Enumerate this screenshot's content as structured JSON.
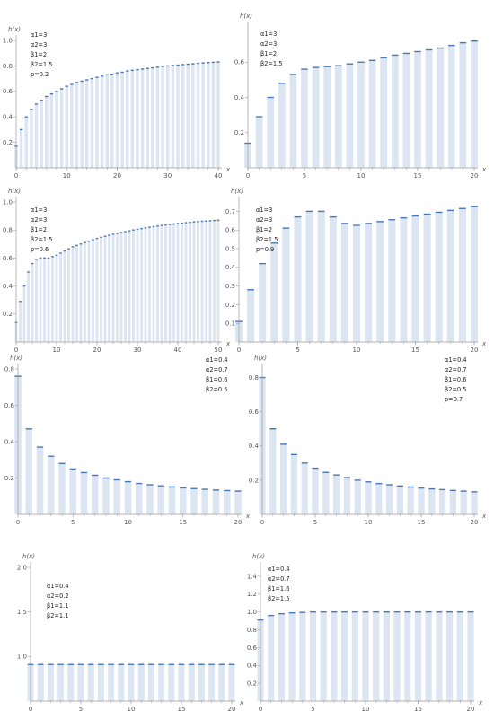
{
  "colors": {
    "bar": "#dce6f2",
    "cap": "#4a78b4",
    "axis": "#9a9a9a",
    "text": "#555555"
  },
  "chart_data": [
    {
      "type": "bar",
      "ylabel": "h(x)",
      "xlabel": "x",
      "xlim": [
        0,
        40
      ],
      "ylim": [
        0,
        1.0
      ],
      "xticks": [
        0,
        10,
        20,
        30,
        40
      ],
      "yticks": [
        0.2,
        0.4,
        0.6,
        0.8,
        1.0
      ],
      "ytick_labels": [
        "0.2",
        "0.4",
        "0.6",
        "0.8",
        "1.0"
      ],
      "params": [
        "α1=3",
        "α2=3",
        "β1=2",
        "β2=1.5",
        "p=0.2"
      ],
      "x_start": 0,
      "values": [
        0.17,
        0.3,
        0.4,
        0.46,
        0.5,
        0.53,
        0.56,
        0.58,
        0.6,
        0.62,
        0.64,
        0.655,
        0.67,
        0.68,
        0.69,
        0.7,
        0.71,
        0.72,
        0.73,
        0.735,
        0.745,
        0.75,
        0.76,
        0.765,
        0.77,
        0.775,
        0.78,
        0.785,
        0.79,
        0.795,
        0.8,
        0.803,
        0.806,
        0.81,
        0.813,
        0.816,
        0.82,
        0.823,
        0.826,
        0.828,
        0.83
      ]
    },
    {
      "type": "bar",
      "ylabel": "h(x)",
      "xlabel": "x",
      "xlim": [
        0,
        20
      ],
      "ylim": [
        0,
        0.8
      ],
      "xticks": [
        0,
        5,
        10,
        15,
        20
      ],
      "yticks": [
        0.2,
        0.4,
        0.6
      ],
      "ytick_labels": [
        "0.2",
        "0.4",
        "0.6"
      ],
      "params": [
        "α1=3",
        "α2=3",
        "β1=2",
        "β2=1.5"
      ],
      "x_start": 0,
      "values": [
        0.14,
        0.29,
        0.4,
        0.48,
        0.53,
        0.56,
        0.57,
        0.575,
        0.58,
        0.59,
        0.6,
        0.61,
        0.625,
        0.64,
        0.65,
        0.66,
        0.67,
        0.68,
        0.695,
        0.71,
        0.72
      ]
    },
    {
      "type": "bar",
      "ylabel": "h(x)",
      "xlabel": "x",
      "xlim": [
        0,
        50
      ],
      "ylim": [
        0,
        1.0
      ],
      "xticks": [
        0,
        10,
        20,
        30,
        40,
        50
      ],
      "yticks": [
        0.2,
        0.4,
        0.6,
        0.8,
        1.0
      ],
      "ytick_labels": [
        "0.2",
        "0.4",
        "0.6",
        "0.8",
        "1.0"
      ],
      "params": [
        "α1=3",
        "α2=3",
        "β1=2",
        "β2=1.5",
        "p=0.6"
      ],
      "x_start": 0,
      "values": [
        0.14,
        0.29,
        0.4,
        0.5,
        0.56,
        0.59,
        0.6,
        0.6,
        0.6,
        0.61,
        0.62,
        0.635,
        0.65,
        0.665,
        0.68,
        0.69,
        0.7,
        0.71,
        0.72,
        0.73,
        0.74,
        0.748,
        0.755,
        0.762,
        0.77,
        0.776,
        0.782,
        0.788,
        0.794,
        0.8,
        0.805,
        0.81,
        0.815,
        0.82,
        0.824,
        0.828,
        0.832,
        0.836,
        0.84,
        0.843,
        0.846,
        0.849,
        0.852,
        0.855,
        0.858,
        0.86,
        0.862,
        0.864,
        0.866,
        0.868,
        0.87
      ]
    },
    {
      "type": "bar",
      "ylabel": "h(x)",
      "xlabel": "x",
      "xlim": [
        0,
        20
      ],
      "ylim": [
        0,
        0.75
      ],
      "xticks": [
        0,
        5,
        10,
        15,
        20
      ],
      "yticks": [
        0.1,
        0.2,
        0.3,
        0.4,
        0.5,
        0.6,
        0.7
      ],
      "ytick_labels": [
        "0.1",
        "0.2",
        "0.3",
        "0.4",
        "0.5",
        "0.6",
        "0.7"
      ],
      "params": [
        "α1=3",
        "α2=3",
        "β1=2",
        "β2=1.5",
        "p=0.9"
      ],
      "x_start": 0,
      "values": [
        0.11,
        0.28,
        0.42,
        0.53,
        0.61,
        0.67,
        0.7,
        0.7,
        0.67,
        0.635,
        0.625,
        0.635,
        0.645,
        0.655,
        0.665,
        0.675,
        0.685,
        0.695,
        0.705,
        0.715,
        0.725
      ]
    },
    {
      "type": "bar",
      "ylabel": "h(x)",
      "xlabel": "x",
      "xlim": [
        0,
        20
      ],
      "ylim": [
        0,
        0.8
      ],
      "xticks": [
        0,
        5,
        10,
        15,
        20
      ],
      "yticks": [
        0.2,
        0.4,
        0.6,
        0.8
      ],
      "ytick_labels": [
        "0.2",
        "0.4",
        "0.6",
        "0.8"
      ],
      "params": [
        "α1=0.4",
        "α2=0.7",
        "β1=0.6",
        "β2=0.5"
      ],
      "x_start": 0,
      "values": [
        0.76,
        0.47,
        0.37,
        0.32,
        0.28,
        0.25,
        0.23,
        0.215,
        0.2,
        0.19,
        0.18,
        0.17,
        0.163,
        0.157,
        0.151,
        0.146,
        0.142,
        0.138,
        0.134,
        0.131,
        0.128
      ]
    },
    {
      "type": "bar",
      "ylabel": "h(x)",
      "xlabel": "x",
      "xlim": [
        0,
        20
      ],
      "ylim": [
        0,
        0.85
      ],
      "xticks": [
        0,
        5,
        10,
        15,
        20
      ],
      "yticks": [
        0.2,
        0.4,
        0.6,
        0.8
      ],
      "ytick_labels": [
        "0.2",
        "0.4",
        "0.6",
        "0.8"
      ],
      "params": [
        "α1=0.4",
        "α2=0.7",
        "β1=0.6",
        "β2=0.5",
        "p=0.7"
      ],
      "x_start": 0,
      "values": [
        0.8,
        0.5,
        0.41,
        0.35,
        0.3,
        0.27,
        0.245,
        0.23,
        0.215,
        0.2,
        0.19,
        0.18,
        0.173,
        0.166,
        0.16,
        0.154,
        0.149,
        0.145,
        0.14,
        0.136,
        0.132
      ]
    },
    {
      "type": "bar",
      "ylabel": "h(x)",
      "xlabel": "x",
      "xlim": [
        0,
        20
      ],
      "ylim": [
        0.5,
        2.0
      ],
      "xticks": [
        0,
        5,
        10,
        15,
        20
      ],
      "yticks": [
        1.0,
        1.5,
        2.0
      ],
      "ytick_labels": [
        "1.0",
        "1.5",
        "2.0"
      ],
      "params": [
        "α1=0.4",
        "α2=0.2",
        "β1=1.1",
        "β2=1.1"
      ],
      "x_start": 0,
      "values": [
        0.91,
        0.91,
        0.91,
        0.91,
        0.91,
        0.91,
        0.91,
        0.91,
        0.91,
        0.91,
        0.91,
        0.91,
        0.91,
        0.91,
        0.91,
        0.91,
        0.91,
        0.91,
        0.91,
        0.91,
        0.91
      ]
    },
    {
      "type": "bar",
      "ylabel": "h(x)",
      "xlabel": "x",
      "xlim": [
        0,
        20
      ],
      "ylim": [
        0,
        1.5
      ],
      "xticks": [
        0,
        5,
        10,
        15,
        20
      ],
      "yticks": [
        0.2,
        0.4,
        0.6,
        0.8,
        1.0,
        1.2,
        1.4
      ],
      "ytick_labels": [
        "0.2",
        "0.4",
        "0.6",
        "0.8",
        "1.0",
        "1.2",
        "1.4"
      ],
      "params": [
        "α1=0.4",
        "α2=0.7",
        "β1=1.6",
        "β2=1.5"
      ],
      "x_start": 0,
      "values": [
        0.91,
        0.96,
        0.98,
        0.99,
        0.995,
        1.0,
        1.0,
        1.0,
        1.0,
        1.0,
        1.0,
        1.0,
        1.0,
        1.0,
        1.0,
        1.0,
        1.0,
        1.0,
        1.0,
        1.0,
        1.0
      ]
    }
  ]
}
